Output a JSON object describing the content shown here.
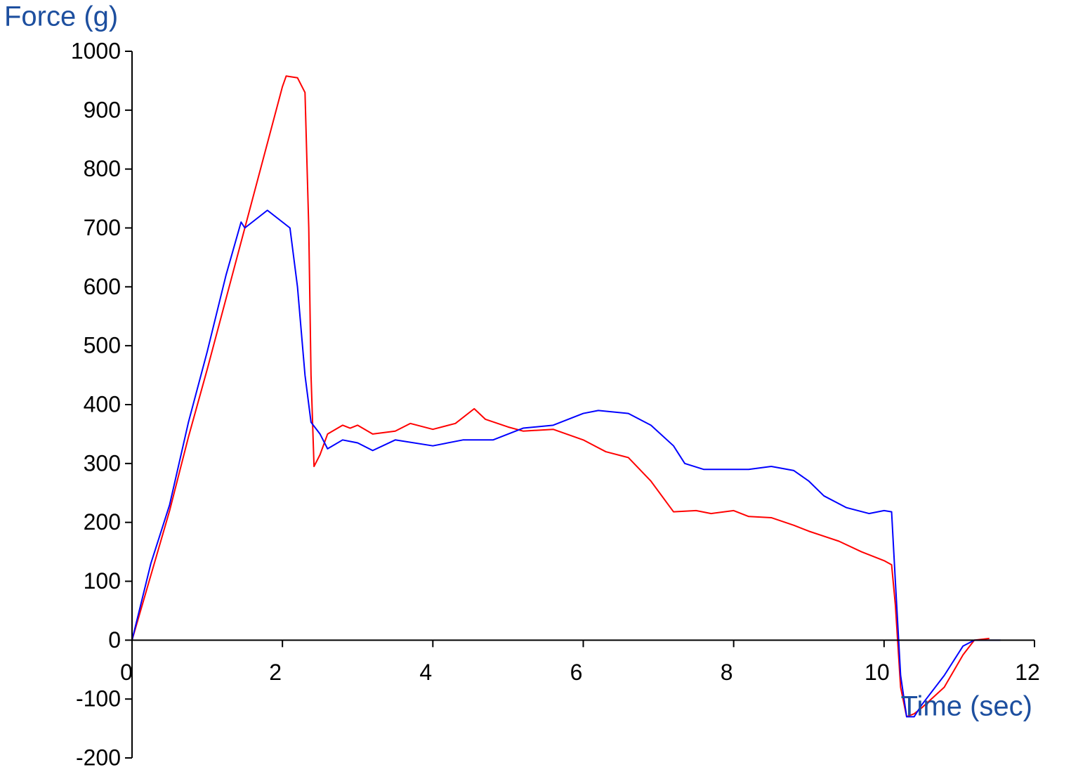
{
  "chart_data": {
    "type": "line",
    "y_label": "Force (g)",
    "x_label": "Time (sec)",
    "xlim": [
      0,
      12
    ],
    "xticks": [
      0,
      2,
      4,
      6,
      8,
      10,
      12
    ],
    "ylim": [
      -200,
      1000
    ],
    "yticks": [
      -200,
      -100,
      0,
      100,
      200,
      300,
      400,
      500,
      600,
      700,
      800,
      900,
      1000
    ],
    "series": [
      {
        "color": "#ff0000",
        "x": [
          0,
          0.25,
          0.5,
          0.75,
          1.0,
          1.25,
          1.5,
          1.75,
          2.0,
          2.05,
          2.2,
          2.3,
          2.35,
          2.38,
          2.42,
          2.5,
          2.6,
          2.8,
          2.9,
          3.0,
          3.2,
          3.5,
          3.7,
          4.0,
          4.3,
          4.55,
          4.7,
          5.0,
          5.2,
          5.6,
          6.0,
          6.3,
          6.6,
          6.9,
          7.2,
          7.5,
          7.7,
          8.0,
          8.2,
          8.5,
          8.8,
          9.0,
          9.4,
          9.7,
          10.0,
          10.1,
          10.15,
          10.22,
          10.3,
          10.4,
          10.5,
          10.8,
          11.05,
          11.2,
          11.4
        ],
        "values": [
          0,
          110,
          220,
          345,
          460,
          580,
          700,
          820,
          940,
          958,
          955,
          930,
          700,
          450,
          295,
          315,
          350,
          365,
          360,
          365,
          350,
          355,
          368,
          358,
          368,
          393,
          375,
          362,
          355,
          358,
          340,
          320,
          310,
          270,
          218,
          220,
          215,
          220,
          210,
          208,
          195,
          185,
          168,
          150,
          135,
          128,
          60,
          -80,
          -130,
          -125,
          -115,
          -80,
          -25,
          0,
          3
        ]
      },
      {
        "color": "#0000ff",
        "x": [
          0,
          0.25,
          0.5,
          0.75,
          1.0,
          1.25,
          1.45,
          1.5,
          1.8,
          2.0,
          2.1,
          2.2,
          2.3,
          2.38,
          2.5,
          2.6,
          2.8,
          3.0,
          3.2,
          3.5,
          4.0,
          4.4,
          4.8,
          5.2,
          5.6,
          6.0,
          6.2,
          6.6,
          6.9,
          7.2,
          7.35,
          7.6,
          8.0,
          8.2,
          8.5,
          8.8,
          9.0,
          9.2,
          9.5,
          9.8,
          10.0,
          10.1,
          10.15,
          10.22,
          10.3,
          10.4,
          10.5,
          10.8,
          11.05,
          11.2,
          11.55
        ],
        "values": [
          0,
          130,
          230,
          370,
          490,
          620,
          710,
          700,
          730,
          710,
          700,
          600,
          450,
          370,
          350,
          325,
          340,
          335,
          322,
          340,
          330,
          340,
          340,
          360,
          365,
          385,
          390,
          385,
          365,
          330,
          300,
          290,
          290,
          290,
          295,
          288,
          270,
          245,
          225,
          215,
          220,
          218,
          100,
          -60,
          -130,
          -130,
          -110,
          -60,
          -10,
          0,
          0
        ]
      }
    ]
  }
}
